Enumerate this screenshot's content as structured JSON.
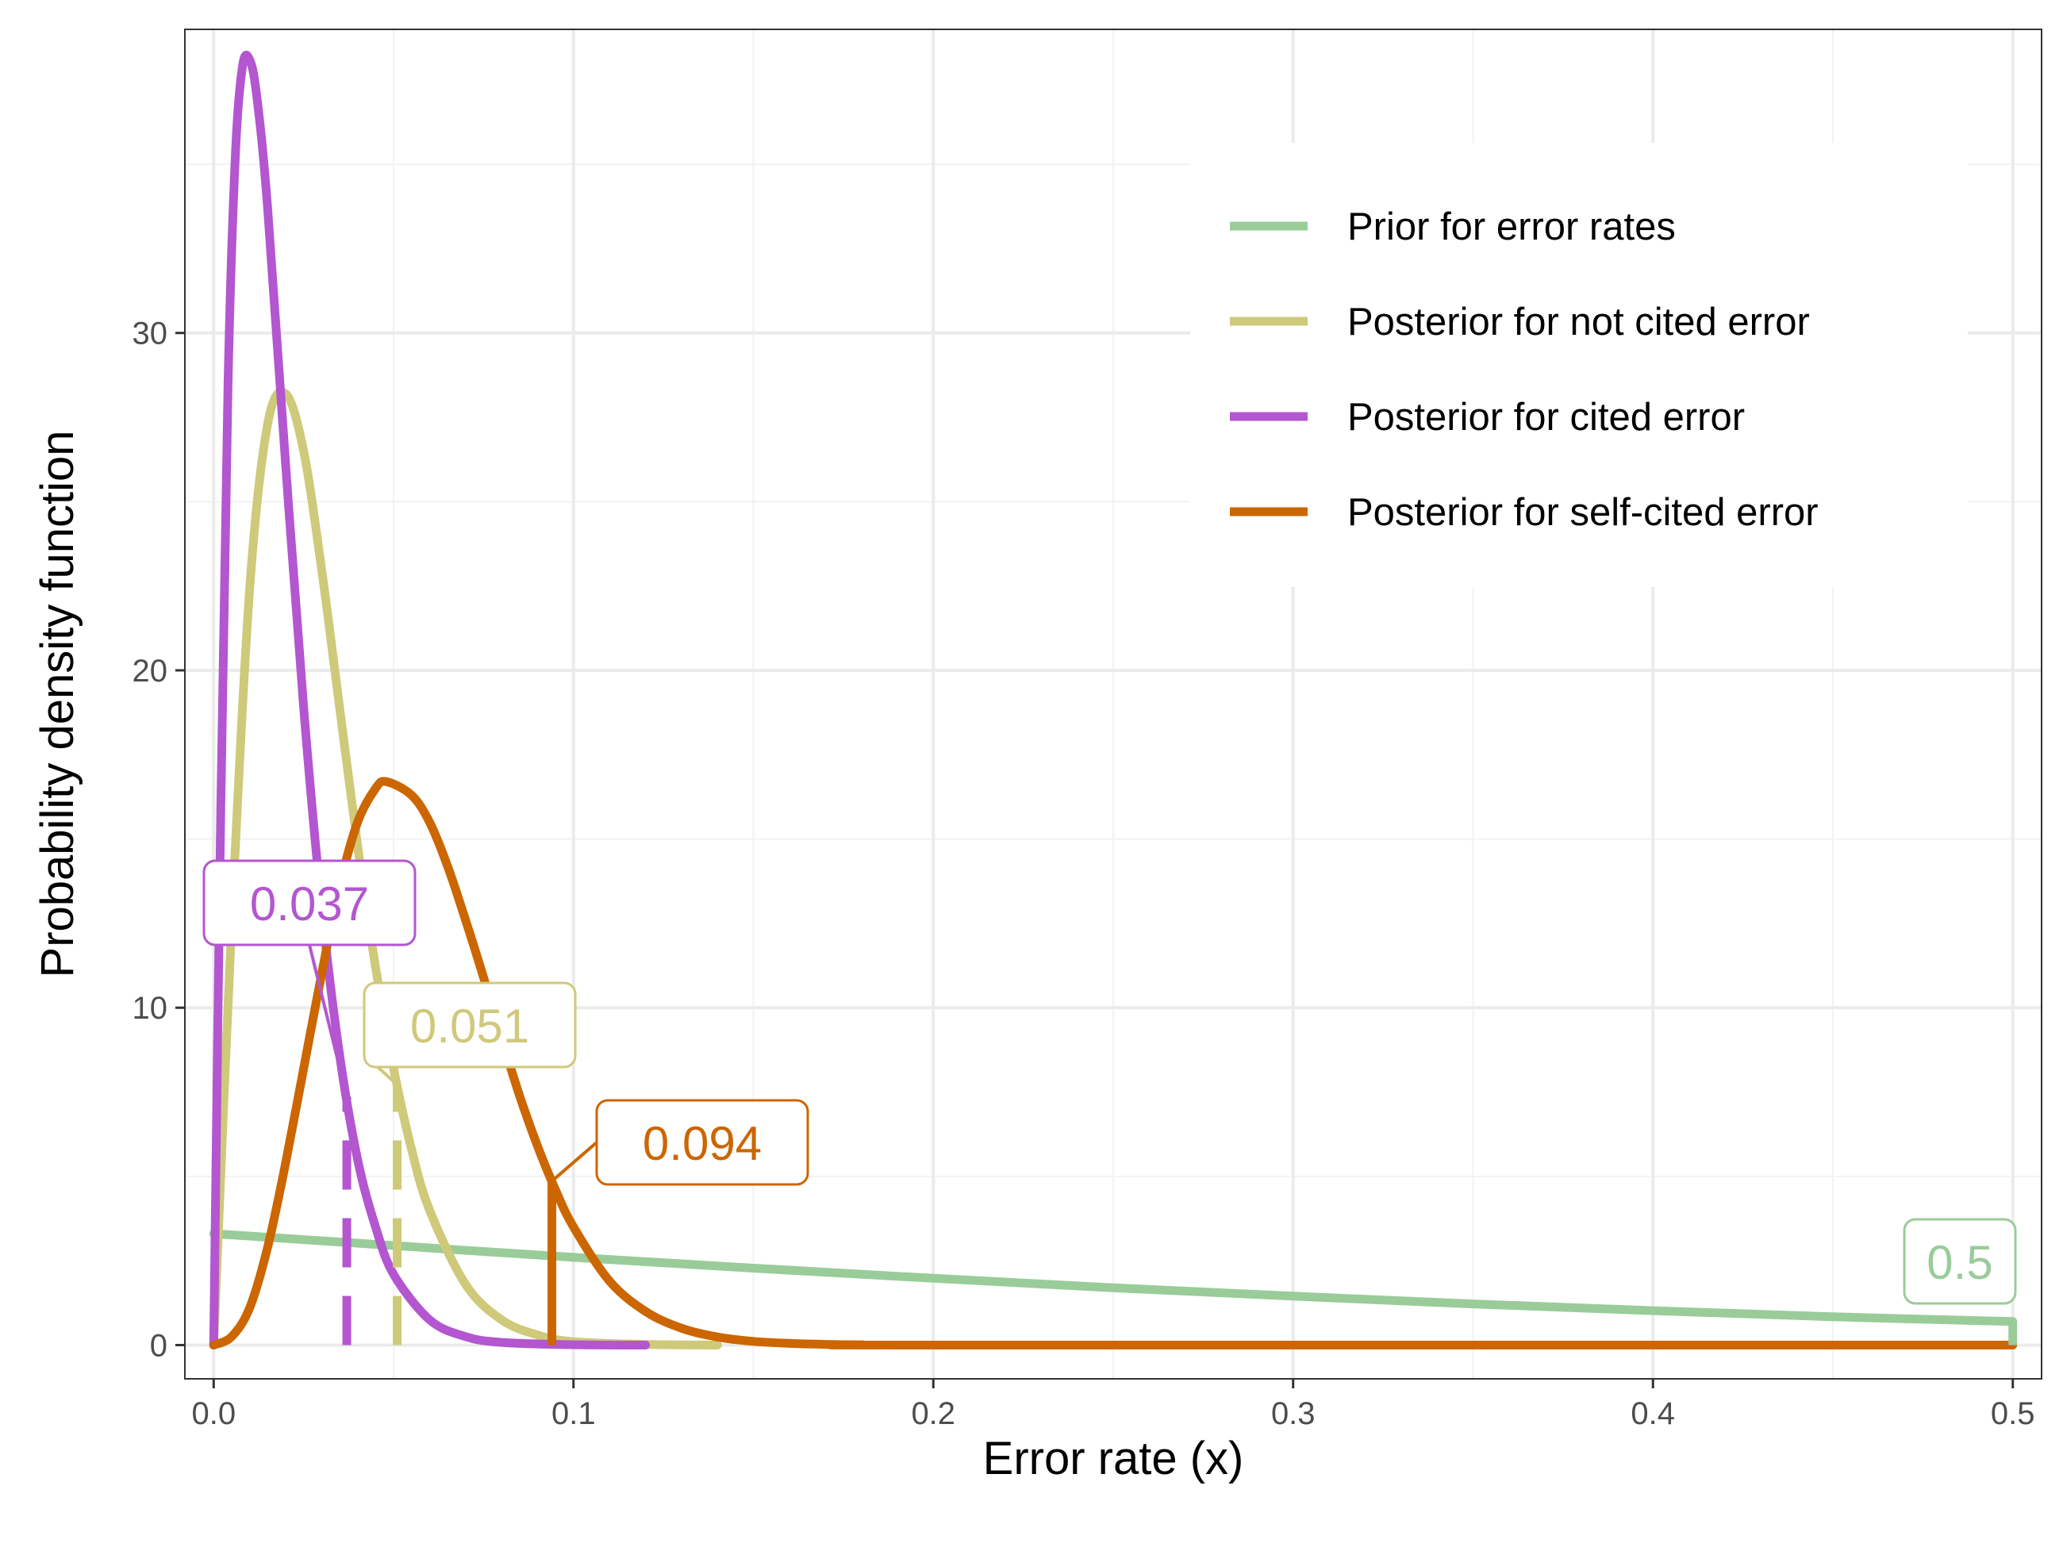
{
  "chart_data": {
    "type": "line",
    "xlabel": "Error rate (x)",
    "ylabel": "Probability density function",
    "xlim": [
      -0.008,
      0.508
    ],
    "ylim": [
      -1,
      39
    ],
    "x_ticks": [
      0.0,
      0.1,
      0.2,
      0.3,
      0.4,
      0.5
    ],
    "x_tick_labels": [
      "0.0",
      "0.1",
      "0.2",
      "0.3",
      "0.4",
      "0.5"
    ],
    "y_ticks": [
      0,
      10,
      20,
      30
    ],
    "y_tick_labels": [
      "0",
      "10",
      "20",
      "30"
    ],
    "grid": true,
    "legend_position": "top-right",
    "series": [
      {
        "name": "Prior for error rates",
        "color": "#99cc99",
        "x": [
          0.0,
          0.05,
          0.1,
          0.15,
          0.2,
          0.25,
          0.3,
          0.35,
          0.4,
          0.45,
          0.5
        ],
        "y": [
          3.3,
          2.95,
          2.6,
          2.28,
          1.98,
          1.7,
          1.45,
          1.22,
          1.02,
          0.84,
          0.7
        ],
        "marker_value": 0.5,
        "marker_label": "0.5"
      },
      {
        "name": "Posterior for not cited error",
        "color": "#cfc97a",
        "x": [
          0.0,
          0.005,
          0.01,
          0.015,
          0.02,
          0.025,
          0.03,
          0.035,
          0.04,
          0.045,
          0.05,
          0.055,
          0.06,
          0.07,
          0.08,
          0.09,
          0.1,
          0.12,
          0.14
        ],
        "y": [
          0.0,
          12.5,
          22.4,
          27.3,
          28.2,
          26.5,
          23.0,
          18.9,
          14.8,
          11.2,
          8.2,
          5.8,
          4.0,
          1.8,
          0.75,
          0.3,
          0.1,
          0.02,
          0.0
        ],
        "marker_value": 0.051,
        "marker_label": "0.051"
      },
      {
        "name": "Posterior for cited error",
        "color": "#b356d0",
        "x": [
          0.0,
          0.002,
          0.004,
          0.006,
          0.008,
          0.01,
          0.012,
          0.015,
          0.02,
          0.025,
          0.03,
          0.035,
          0.04,
          0.045,
          0.05,
          0.06,
          0.07,
          0.08,
          0.1,
          0.12
        ],
        "y": [
          0.0,
          16.0,
          28.5,
          35.2,
          37.9,
          38.1,
          37.0,
          33.7,
          26.1,
          18.9,
          13.0,
          8.6,
          5.5,
          3.5,
          2.1,
          0.75,
          0.25,
          0.08,
          0.01,
          0.0
        ],
        "marker_value": 0.037,
        "marker_label": "0.037"
      },
      {
        "name": "Posterior for self-cited error",
        "color": "#cc6600",
        "x": [
          0.0,
          0.005,
          0.01,
          0.015,
          0.02,
          0.025,
          0.03,
          0.035,
          0.04,
          0.045,
          0.048,
          0.055,
          0.06,
          0.065,
          0.07,
          0.075,
          0.08,
          0.085,
          0.09,
          0.095,
          0.1,
          0.11,
          0.12,
          0.13,
          0.14,
          0.15,
          0.16,
          0.17,
          0.18,
          0.2,
          0.5
        ],
        "y": [
          0.0,
          0.25,
          1.1,
          2.9,
          5.4,
          8.2,
          11.0,
          13.6,
          15.5,
          16.5,
          16.7,
          16.3,
          15.5,
          14.2,
          12.6,
          10.9,
          9.1,
          7.4,
          5.9,
          4.6,
          3.5,
          1.9,
          1.0,
          0.5,
          0.24,
          0.11,
          0.05,
          0.02,
          0.008,
          0.0,
          0.0
        ],
        "marker_value": 0.094,
        "marker_label": "0.094"
      }
    ]
  }
}
